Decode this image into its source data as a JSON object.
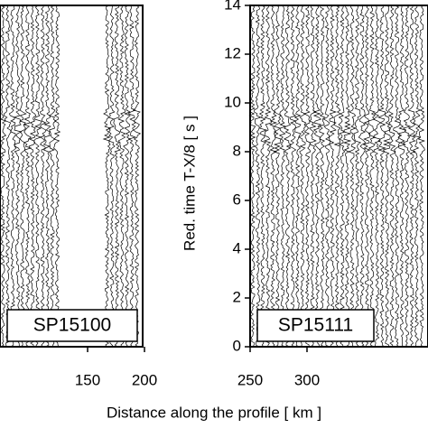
{
  "chart_data": [
    {
      "type": "seismic-section",
      "label": "SP15100",
      "xlabel": "Distance along the profile   [ km ]",
      "xlim": [
        73,
        200
      ],
      "xticks": [
        150,
        200
      ],
      "ylim": [
        0,
        14
      ]
    },
    {
      "type": "seismic-section",
      "label": "SP15111",
      "ylabel": "Red. time  T-X/8  [ s ]",
      "xlim": [
        250,
        406
      ],
      "xticks": [
        250,
        300
      ],
      "ylim": [
        0,
        14
      ],
      "yticks": [
        0,
        2,
        4,
        6,
        8,
        10,
        12,
        14
      ]
    }
  ]
}
